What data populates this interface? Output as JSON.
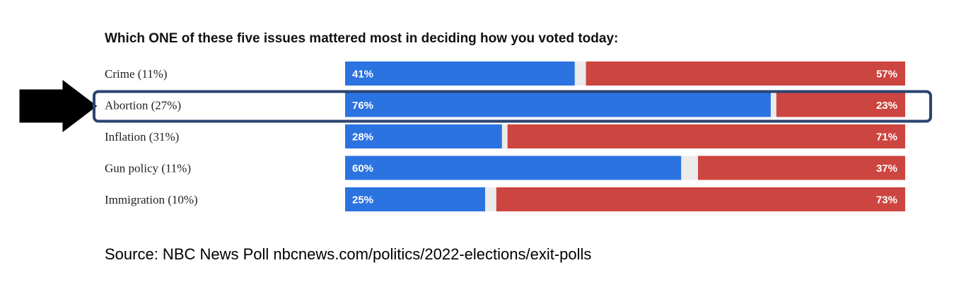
{
  "chart_data": {
    "type": "bar",
    "orientation": "horizontal-stacked",
    "title": "Which ONE of these five issues mattered most in deciding how you voted today:",
    "categories": [
      "Crime (11%)",
      "Abortion (27%)",
      "Inflation (31%)",
      "Gun policy (11%)",
      "Immigration (10%)"
    ],
    "series": [
      {
        "values": [
          41,
          76,
          28,
          60,
          25
        ],
        "labels": [
          "41%",
          "76%",
          "28%",
          "60%",
          "25%"
        ],
        "color": "#2b73e0"
      },
      {
        "values": [
          57,
          23,
          71,
          37,
          73
        ],
        "labels": [
          "57%",
          "23%",
          "71%",
          "37%",
          "73%"
        ],
        "color": "#cd4540"
      }
    ],
    "highlight_index": 1,
    "highlight_color": "#2a4470",
    "gap_color": "#ebebeb",
    "xlim": [
      0,
      100
    ],
    "legend": "none",
    "grid": false
  },
  "annotations": {
    "arrow": "right-arrow-icon",
    "arrow_color": "#000000"
  },
  "source": "Source: NBC News Poll  nbcnews.com/politics/2022-elections/exit-polls"
}
